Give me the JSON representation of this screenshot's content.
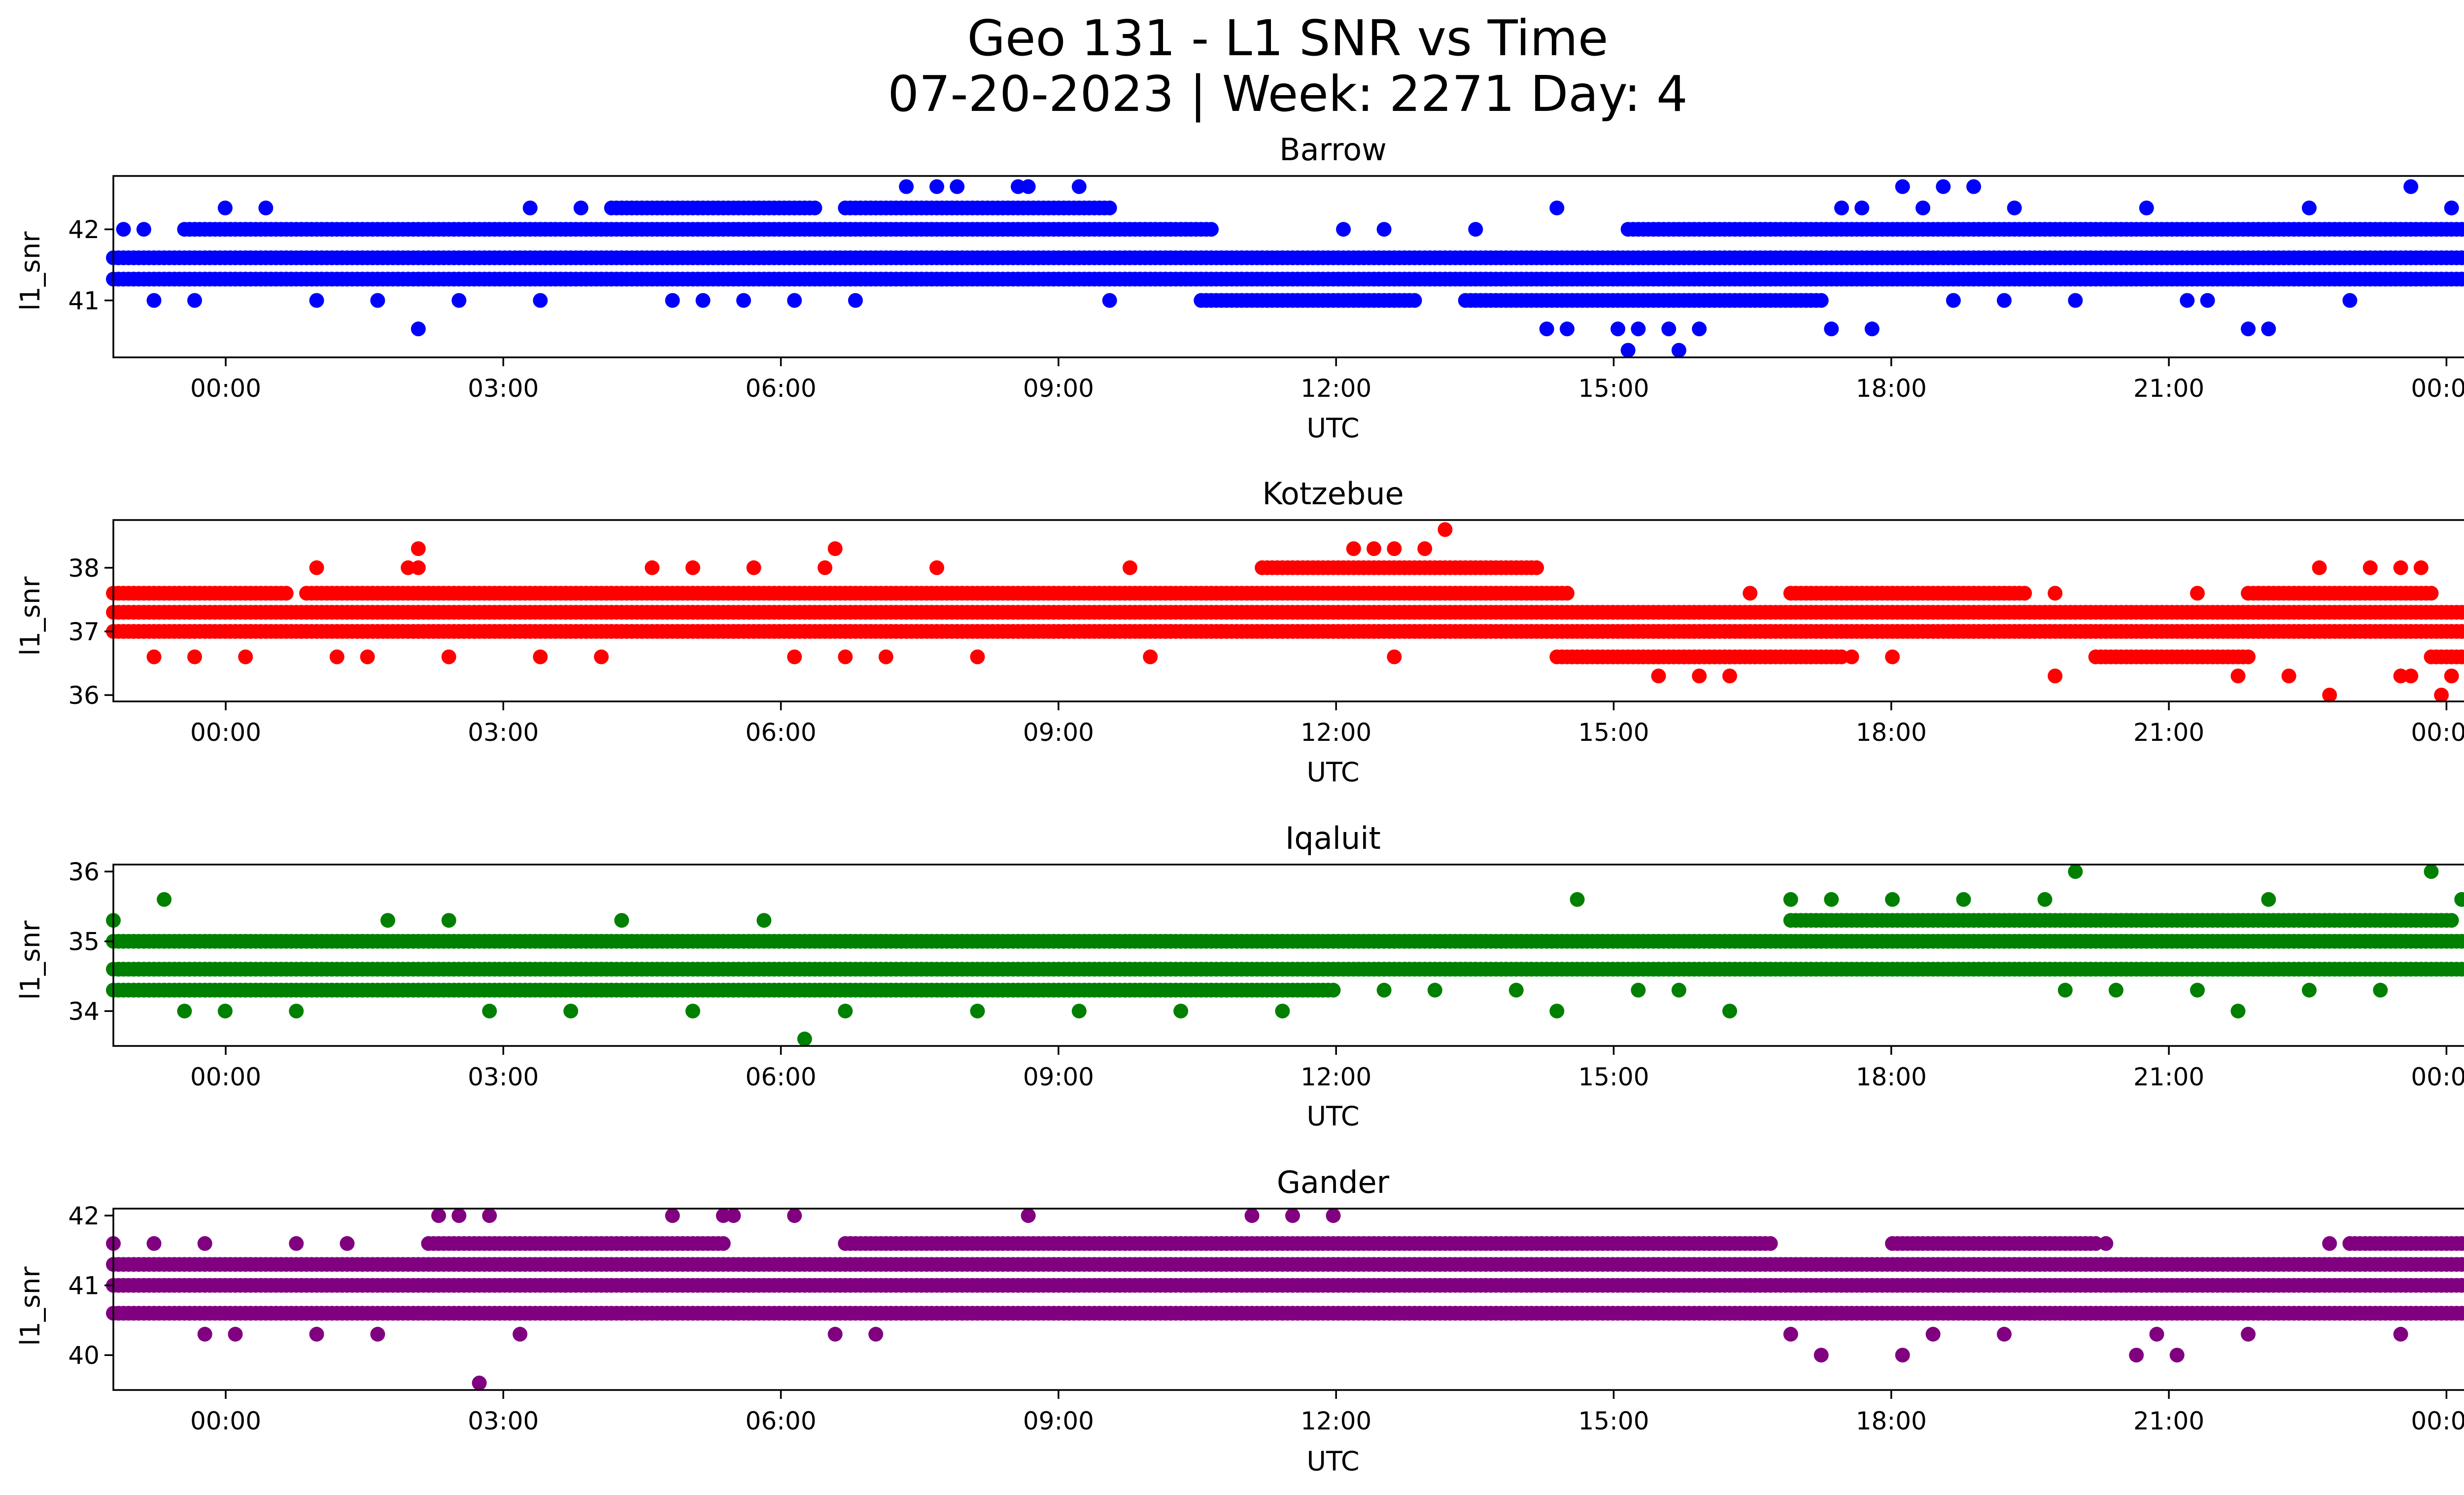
{
  "title_line1": "Geo 131 - L1 SNR vs Time",
  "title_line2": "07-20-2023 | Week: 2271 Day: 4",
  "chart_data": [
    {
      "type": "scatter",
      "title": "Barrow",
      "xlabel": "UTC",
      "ylabel": "l1_snr",
      "color": "#0000ff",
      "xlim": [
        0,
        24
      ],
      "ylim": [
        40.2,
        42.75
      ],
      "x_ticks": [
        "00:00",
        "03:00",
        "06:00",
        "09:00",
        "12:00",
        "15:00",
        "18:00",
        "21:00",
        "00:00"
      ],
      "y_ticks": [
        41,
        42
      ],
      "bands": [
        {
          "y": 41.3,
          "x_start": 0,
          "x_end": 24
        },
        {
          "y": 41.6,
          "x_start": 0,
          "x_end": 24
        },
        {
          "y": 42.0,
          "segments": [
            [
              0.7,
              10.8
            ],
            [
              14.9,
              24.0
            ]
          ]
        },
        {
          "y": 42.3,
          "segments": [
            [
              4.9,
              6.9
            ],
            [
              7.2,
              9.8
            ]
          ]
        },
        {
          "y": 41.0,
          "segments": [
            [
              10.7,
              12.8
            ],
            [
              13.3,
              16.8
            ]
          ]
        }
      ],
      "points": [
        {
          "x": 0.1,
          "y": 42.0
        },
        {
          "x": 0.3,
          "y": 42.0
        },
        {
          "x": 0.4,
          "y": 41.0
        },
        {
          "x": 0.8,
          "y": 41.0
        },
        {
          "x": 1.1,
          "y": 42.3
        },
        {
          "x": 1.5,
          "y": 42.3
        },
        {
          "x": 2.0,
          "y": 41.0
        },
        {
          "x": 2.6,
          "y": 41.0
        },
        {
          "x": 3.0,
          "y": 40.6
        },
        {
          "x": 3.4,
          "y": 41.0
        },
        {
          "x": 4.1,
          "y": 42.3
        },
        {
          "x": 4.2,
          "y": 41.0
        },
        {
          "x": 4.6,
          "y": 42.3
        },
        {
          "x": 5.5,
          "y": 41.0
        },
        {
          "x": 5.8,
          "y": 41.0
        },
        {
          "x": 6.2,
          "y": 41.0
        },
        {
          "x": 6.7,
          "y": 41.0
        },
        {
          "x": 7.3,
          "y": 41.0
        },
        {
          "x": 7.8,
          "y": 42.6
        },
        {
          "x": 8.1,
          "y": 42.6
        },
        {
          "x": 8.3,
          "y": 42.6
        },
        {
          "x": 8.9,
          "y": 42.6
        },
        {
          "x": 9.0,
          "y": 42.6
        },
        {
          "x": 9.5,
          "y": 42.6
        },
        {
          "x": 9.8,
          "y": 41.0
        },
        {
          "x": 12.1,
          "y": 42.0
        },
        {
          "x": 12.5,
          "y": 42.0
        },
        {
          "x": 13.4,
          "y": 42.0
        },
        {
          "x": 14.2,
          "y": 42.3
        },
        {
          "x": 14.1,
          "y": 40.6
        },
        {
          "x": 14.3,
          "y": 40.6
        },
        {
          "x": 14.8,
          "y": 40.6
        },
        {
          "x": 15.0,
          "y": 40.6
        },
        {
          "x": 15.3,
          "y": 40.6
        },
        {
          "x": 15.6,
          "y": 40.6
        },
        {
          "x": 14.9,
          "y": 40.3
        },
        {
          "x": 15.4,
          "y": 40.3
        },
        {
          "x": 16.9,
          "y": 40.6
        },
        {
          "x": 17.3,
          "y": 40.6
        },
        {
          "x": 17.0,
          "y": 42.3
        },
        {
          "x": 17.2,
          "y": 42.3
        },
        {
          "x": 17.8,
          "y": 42.3
        },
        {
          "x": 17.6,
          "y": 42.6
        },
        {
          "x": 18.0,
          "y": 42.6
        },
        {
          "x": 18.3,
          "y": 42.6
        },
        {
          "x": 18.7,
          "y": 42.3
        },
        {
          "x": 18.1,
          "y": 41.0
        },
        {
          "x": 18.6,
          "y": 41.0
        },
        {
          "x": 19.3,
          "y": 41.0
        },
        {
          "x": 20.0,
          "y": 42.3
        },
        {
          "x": 20.4,
          "y": 41.0
        },
        {
          "x": 20.6,
          "y": 41.0
        },
        {
          "x": 21.0,
          "y": 40.6
        },
        {
          "x": 21.2,
          "y": 40.6
        },
        {
          "x": 21.6,
          "y": 42.3
        },
        {
          "x": 22.0,
          "y": 41.0
        },
        {
          "x": 22.6,
          "y": 42.6
        },
        {
          "x": 23.0,
          "y": 42.3
        },
        {
          "x": 23.4,
          "y": 41.0
        },
        {
          "x": 23.8,
          "y": 42.3
        }
      ]
    },
    {
      "type": "scatter",
      "title": "Kotzebue",
      "xlabel": "UTC",
      "ylabel": "l1_snr",
      "color": "#ff0000",
      "xlim": [
        0,
        24
      ],
      "ylim": [
        35.9,
        38.75
      ],
      "x_ticks": [
        "00:00",
        "03:00",
        "06:00",
        "09:00",
        "12:00",
        "15:00",
        "18:00",
        "21:00",
        "00:00"
      ],
      "y_ticks": [
        36,
        37,
        38
      ],
      "bands": [
        {
          "y": 37.0,
          "x_start": 0,
          "x_end": 24
        },
        {
          "y": 37.3,
          "x_start": 0,
          "x_end": 24
        },
        {
          "y": 37.6,
          "segments": [
            [
              0.0,
              1.7
            ],
            [
              1.9,
              14.3
            ],
            [
              16.5,
              18.8
            ],
            [
              21.0,
              22.8
            ]
          ]
        },
        {
          "y": 38.0,
          "segments": [
            [
              11.3,
              14.0
            ]
          ]
        },
        {
          "y": 36.6,
          "segments": [
            [
              14.2,
              17.0
            ],
            [
              19.5,
              21.0
            ],
            [
              22.8,
              24.0
            ]
          ]
        }
      ],
      "points": [
        {
          "x": 0.4,
          "y": 36.6
        },
        {
          "x": 0.8,
          "y": 36.6
        },
        {
          "x": 1.3,
          "y": 36.6
        },
        {
          "x": 2.0,
          "y": 38.0
        },
        {
          "x": 2.2,
          "y": 36.6
        },
        {
          "x": 2.5,
          "y": 36.6
        },
        {
          "x": 2.9,
          "y": 38.0
        },
        {
          "x": 3.0,
          "y": 38.3
        },
        {
          "x": 3.0,
          "y": 38.0
        },
        {
          "x": 3.3,
          "y": 36.6
        },
        {
          "x": 4.2,
          "y": 36.6
        },
        {
          "x": 4.8,
          "y": 36.6
        },
        {
          "x": 5.3,
          "y": 38.0
        },
        {
          "x": 5.7,
          "y": 38.0
        },
        {
          "x": 6.3,
          "y": 38.0
        },
        {
          "x": 6.7,
          "y": 36.6
        },
        {
          "x": 7.0,
          "y": 38.0
        },
        {
          "x": 7.1,
          "y": 38.3
        },
        {
          "x": 7.2,
          "y": 36.6
        },
        {
          "x": 7.6,
          "y": 36.6
        },
        {
          "x": 8.1,
          "y": 38.0
        },
        {
          "x": 8.5,
          "y": 36.6
        },
        {
          "x": 10.0,
          "y": 38.0
        },
        {
          "x": 10.2,
          "y": 36.6
        },
        {
          "x": 10.9,
          "y": 37.0
        },
        {
          "x": 12.2,
          "y": 38.3
        },
        {
          "x": 12.4,
          "y": 38.3
        },
        {
          "x": 12.6,
          "y": 38.3
        },
        {
          "x": 12.9,
          "y": 38.3
        },
        {
          "x": 13.1,
          "y": 38.6
        },
        {
          "x": 12.6,
          "y": 36.6
        },
        {
          "x": 15.2,
          "y": 36.3
        },
        {
          "x": 15.6,
          "y": 36.3
        },
        {
          "x": 15.9,
          "y": 36.3
        },
        {
          "x": 16.1,
          "y": 37.6
        },
        {
          "x": 17.1,
          "y": 36.6
        },
        {
          "x": 17.5,
          "y": 36.6
        },
        {
          "x": 19.1,
          "y": 36.3
        },
        {
          "x": 19.1,
          "y": 37.6
        },
        {
          "x": 20.5,
          "y": 37.6
        },
        {
          "x": 20.9,
          "y": 36.3
        },
        {
          "x": 21.4,
          "y": 36.3
        },
        {
          "x": 21.8,
          "y": 36.0
        },
        {
          "x": 21.7,
          "y": 38.0
        },
        {
          "x": 22.2,
          "y": 38.0
        },
        {
          "x": 22.5,
          "y": 38.0
        },
        {
          "x": 22.6,
          "y": 36.3
        },
        {
          "x": 22.7,
          "y": 38.0
        },
        {
          "x": 22.9,
          "y": 36.0
        },
        {
          "x": 23.3,
          "y": 36.3
        },
        {
          "x": 22.5,
          "y": 36.3
        },
        {
          "x": 23.0,
          "y": 36.3
        }
      ]
    },
    {
      "type": "scatter",
      "title": "Iqaluit",
      "xlabel": "UTC",
      "ylabel": "l1_snr",
      "color": "#008000",
      "xlim": [
        0,
        24
      ],
      "ylim": [
        33.5,
        36.1
      ],
      "x_ticks": [
        "00:00",
        "03:00",
        "06:00",
        "09:00",
        "12:00",
        "15:00",
        "18:00",
        "21:00",
        "00:00"
      ],
      "y_ticks": [
        34,
        35,
        36
      ],
      "bands": [
        {
          "y": 34.6,
          "x_start": 0,
          "x_end": 24
        },
        {
          "y": 35.0,
          "x_start": 0,
          "x_end": 24
        },
        {
          "y": 34.3,
          "segments": [
            [
              0.0,
              12.0
            ]
          ]
        },
        {
          "y": 35.3,
          "segments": [
            [
              16.5,
              23.0
            ]
          ]
        }
      ],
      "points": [
        {
          "x": 0.0,
          "y": 35.3
        },
        {
          "x": 0.5,
          "y": 35.6
        },
        {
          "x": 0.7,
          "y": 34.0
        },
        {
          "x": 1.1,
          "y": 34.0
        },
        {
          "x": 1.8,
          "y": 34.0
        },
        {
          "x": 2.7,
          "y": 35.3
        },
        {
          "x": 3.3,
          "y": 35.3
        },
        {
          "x": 3.7,
          "y": 34.0
        },
        {
          "x": 4.5,
          "y": 34.0
        },
        {
          "x": 5.0,
          "y": 35.3
        },
        {
          "x": 5.7,
          "y": 34.0
        },
        {
          "x": 6.4,
          "y": 35.3
        },
        {
          "x": 6.8,
          "y": 33.6
        },
        {
          "x": 7.2,
          "y": 34.0
        },
        {
          "x": 8.5,
          "y": 34.0
        },
        {
          "x": 9.5,
          "y": 34.0
        },
        {
          "x": 10.5,
          "y": 34.0
        },
        {
          "x": 11.5,
          "y": 34.0
        },
        {
          "x": 12.5,
          "y": 34.3
        },
        {
          "x": 13.0,
          "y": 34.3
        },
        {
          "x": 13.8,
          "y": 34.3
        },
        {
          "x": 14.2,
          "y": 34.0
        },
        {
          "x": 14.4,
          "y": 35.6
        },
        {
          "x": 15.0,
          "y": 34.3
        },
        {
          "x": 15.4,
          "y": 34.3
        },
        {
          "x": 15.9,
          "y": 34.0
        },
        {
          "x": 16.5,
          "y": 35.6
        },
        {
          "x": 16.9,
          "y": 35.6
        },
        {
          "x": 17.5,
          "y": 35.6
        },
        {
          "x": 18.2,
          "y": 35.6
        },
        {
          "x": 19.0,
          "y": 35.6
        },
        {
          "x": 19.3,
          "y": 36.0
        },
        {
          "x": 19.2,
          "y": 34.3
        },
        {
          "x": 19.7,
          "y": 34.3
        },
        {
          "x": 20.5,
          "y": 34.3
        },
        {
          "x": 20.9,
          "y": 34.0
        },
        {
          "x": 21.2,
          "y": 35.6
        },
        {
          "x": 21.6,
          "y": 34.3
        },
        {
          "x": 22.3,
          "y": 34.3
        },
        {
          "x": 22.8,
          "y": 36.0
        },
        {
          "x": 23.1,
          "y": 35.6
        },
        {
          "x": 23.3,
          "y": 36.0
        },
        {
          "x": 23.5,
          "y": 34.6
        }
      ]
    },
    {
      "type": "scatter",
      "title": "Gander",
      "xlabel": "UTC",
      "ylabel": "l1_snr",
      "color": "#800080",
      "xlim": [
        0,
        24
      ],
      "ylim": [
        39.5,
        42.1
      ],
      "x_ticks": [
        "00:00",
        "03:00",
        "06:00",
        "09:00",
        "12:00",
        "15:00",
        "18:00",
        "21:00",
        "00:00"
      ],
      "y_ticks": [
        40,
        41,
        42
      ],
      "bands": [
        {
          "y": 41.0,
          "x_start": 0,
          "x_end": 24
        },
        {
          "y": 41.3,
          "x_start": 0,
          "x_end": 24
        },
        {
          "y": 40.6,
          "x_start": 0,
          "x_end": 24
        },
        {
          "y": 41.6,
          "segments": [
            [
              3.1,
              6.0
            ],
            [
              7.2,
              16.3
            ],
            [
              17.5,
              19.5
            ],
            [
              22.0,
              23.5
            ]
          ]
        }
      ],
      "points": [
        {
          "x": 0.0,
          "y": 41.6
        },
        {
          "x": 0.4,
          "y": 41.6
        },
        {
          "x": 0.9,
          "y": 41.6
        },
        {
          "x": 0.9,
          "y": 40.3
        },
        {
          "x": 1.2,
          "y": 40.3
        },
        {
          "x": 1.8,
          "y": 41.6
        },
        {
          "x": 2.0,
          "y": 40.3
        },
        {
          "x": 2.3,
          "y": 41.6
        },
        {
          "x": 2.6,
          "y": 40.3
        },
        {
          "x": 3.2,
          "y": 42.0
        },
        {
          "x": 3.4,
          "y": 42.0
        },
        {
          "x": 3.6,
          "y": 39.6
        },
        {
          "x": 3.7,
          "y": 42.0
        },
        {
          "x": 4.0,
          "y": 40.3
        },
        {
          "x": 5.5,
          "y": 42.0
        },
        {
          "x": 6.0,
          "y": 42.0
        },
        {
          "x": 6.1,
          "y": 42.0
        },
        {
          "x": 6.7,
          "y": 42.0
        },
        {
          "x": 7.1,
          "y": 40.3
        },
        {
          "x": 7.5,
          "y": 40.3
        },
        {
          "x": 9.0,
          "y": 42.0
        },
        {
          "x": 11.2,
          "y": 42.0
        },
        {
          "x": 11.6,
          "y": 42.0
        },
        {
          "x": 12.0,
          "y": 42.0
        },
        {
          "x": 16.8,
          "y": 40.0
        },
        {
          "x": 16.5,
          "y": 40.3
        },
        {
          "x": 17.6,
          "y": 40.0
        },
        {
          "x": 17.9,
          "y": 40.3
        },
        {
          "x": 18.6,
          "y": 40.3
        },
        {
          "x": 19.6,
          "y": 41.6
        },
        {
          "x": 19.9,
          "y": 40.0
        },
        {
          "x": 20.3,
          "y": 40.0
        },
        {
          "x": 20.1,
          "y": 40.3
        },
        {
          "x": 21.0,
          "y": 40.3
        },
        {
          "x": 21.8,
          "y": 41.6
        },
        {
          "x": 22.5,
          "y": 40.3
        },
        {
          "x": 23.2,
          "y": 42.0
        },
        {
          "x": 23.4,
          "y": 40.6
        }
      ]
    }
  ]
}
